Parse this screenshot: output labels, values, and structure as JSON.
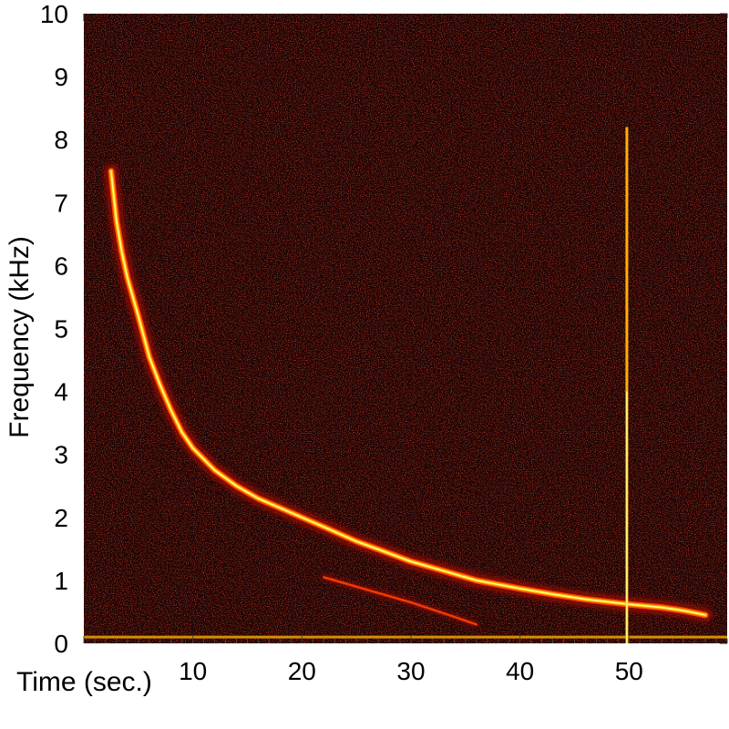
{
  "chart_data": {
    "type": "heatmap",
    "subtype": "spectrogram",
    "xlabel": "Time (sec.)",
    "ylabel": "Frequency (kHz)",
    "xlim": [
      0,
      59
    ],
    "ylim": [
      0,
      10
    ],
    "x_ticks": [
      10,
      20,
      30,
      40,
      50
    ],
    "y_ticks": [
      0,
      1,
      2,
      3,
      4,
      5,
      6,
      7,
      8,
      9,
      10
    ],
    "colormap": [
      "#000000",
      "#5a0000",
      "#b01000",
      "#ff4000",
      "#ffb000",
      "#ffff80"
    ],
    "background_color": "#160303",
    "grid": false,
    "legend": "none",
    "series": [
      {
        "feature": "main descending whistler trace",
        "x": [
          2.5,
          3,
          3.5,
          4,
          5,
          6,
          7,
          8,
          9,
          10,
          12,
          14,
          16,
          18,
          20,
          22,
          25,
          28,
          30,
          33,
          36,
          40,
          43,
          46,
          50,
          53,
          55,
          57
        ],
        "y": [
          7.5,
          6.7,
          6.2,
          5.8,
          5.2,
          4.55,
          4.1,
          3.7,
          3.35,
          3.1,
          2.75,
          2.5,
          2.3,
          2.15,
          2.0,
          1.85,
          1.62,
          1.43,
          1.3,
          1.15,
          1.0,
          0.87,
          0.78,
          0.7,
          0.62,
          0.57,
          0.52,
          0.45
        ]
      },
      {
        "feature": "faint secondary trace",
        "x": [
          22,
          26,
          30,
          34,
          36
        ],
        "y": [
          1.05,
          0.85,
          0.65,
          0.42,
          0.3
        ]
      },
      {
        "feature": "vertical broadband spike",
        "x": [
          49.8,
          49.8
        ],
        "y": [
          0,
          8.2
        ]
      },
      {
        "feature": "low-frequency band",
        "x": [
          0,
          59
        ],
        "y": [
          0.1,
          0.1
        ]
      }
    ]
  }
}
